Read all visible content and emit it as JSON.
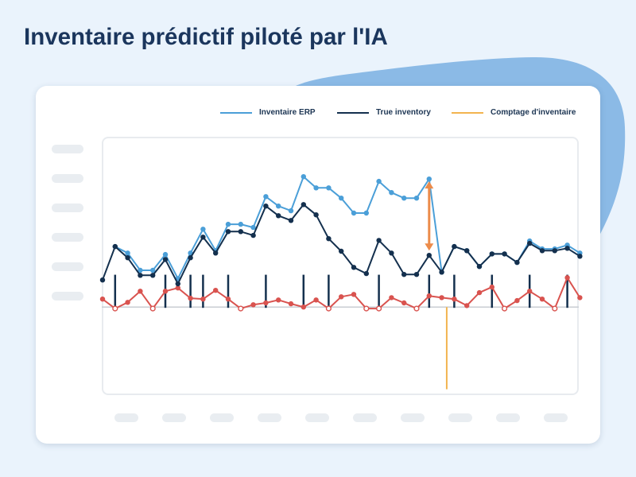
{
  "title": "Inventaire prédictif piloté par l'IA",
  "colors": {
    "page_background": "#EAF3FC",
    "accent_shape": "#8BBAE6",
    "title_text": "#1B365D"
  },
  "chart_data": {
    "type": "line",
    "xlabel": "",
    "ylabel": "",
    "xlim": [
      0,
      38
    ],
    "ylim": [
      -30,
      58
    ],
    "baseline": 0,
    "grid": false,
    "legend_position": "top-right",
    "x": [
      0,
      1,
      2,
      3,
      4,
      5,
      6,
      7,
      8,
      9,
      10,
      11,
      12,
      13,
      14,
      15,
      16,
      17,
      18,
      19,
      20,
      21,
      22,
      23,
      24,
      25,
      26,
      27,
      28,
      29,
      30,
      31,
      32,
      33,
      34,
      35,
      36,
      37,
      38
    ],
    "series": [
      {
        "type": "bar",
        "color": "#14304E",
        "x": [
          1,
          5,
          7,
          8,
          10,
          13,
          16,
          18,
          22,
          26,
          28,
          31,
          34,
          37
        ],
        "values": [
          11,
          11,
          11,
          11,
          11,
          11,
          11,
          11,
          11,
          11,
          11,
          11,
          11,
          11
        ]
      },
      {
        "type": "line",
        "color": "#D9534F",
        "values": [
          2.7,
          -0.5,
          1.6,
          5.4,
          -0.5,
          5.4,
          6.5,
          3.0,
          2.7,
          5.7,
          2.7,
          -0.5,
          0.8,
          1.4,
          2.4,
          1.1,
          0.0,
          2.4,
          -0.5,
          3.5,
          4.3,
          -0.5,
          -0.5,
          3.2,
          1.4,
          -0.5,
          3.8,
          3.2,
          2.7,
          0.5,
          4.9,
          6.8,
          -0.5,
          2.2,
          5.4,
          2.7,
          -0.5,
          10.0,
          3.2
        ],
        "hollow_points": [
          1,
          4,
          11,
          18,
          21,
          22,
          25,
          32,
          36
        ]
      },
      {
        "name": "Inventaire ERP",
        "type": "line",
        "color": "#4B9FD8",
        "values": [
          null,
          20.6,
          18.4,
          12.5,
          12.5,
          17.9,
          9.7,
          18.4,
          26.5,
          19.2,
          28.2,
          28.2,
          27.1,
          37.6,
          34.4,
          32.8,
          44.4,
          40.6,
          40.6,
          37.1,
          32.0,
          32.0,
          42.8,
          39.0,
          37.1,
          37.1,
          43.6,
          11.9,
          20.6,
          19.2,
          13.8,
          18.1,
          18.1,
          15.2,
          22.5,
          19.8,
          19.8,
          21.1,
          18.4
        ]
      },
      {
        "name": "True inventory",
        "type": "line",
        "color": "#14304E",
        "values": [
          9.2,
          20.6,
          16.8,
          10.8,
          10.8,
          16.2,
          7.9,
          16.8,
          23.8,
          18.4,
          25.7,
          25.7,
          24.4,
          34.4,
          31.1,
          29.5,
          34.9,
          31.4,
          23.3,
          19.0,
          13.5,
          11.4,
          22.7,
          18.4,
          11.1,
          11.1,
          17.6,
          11.9,
          20.6,
          19.2,
          13.8,
          18.1,
          18.1,
          15.2,
          21.7,
          19.2,
          19.2,
          20.0,
          17.3
        ]
      }
    ],
    "events": [
      {
        "name": "Comptage d'inventaire",
        "type": "vline",
        "color": "#F2B44F",
        "x": 27.4,
        "from": 0,
        "to": -28
      }
    ],
    "annotations": [
      {
        "type": "double-arrow",
        "color": "#EC8B4A",
        "x": 26,
        "from": 42.8,
        "to": 19.2
      }
    ]
  }
}
